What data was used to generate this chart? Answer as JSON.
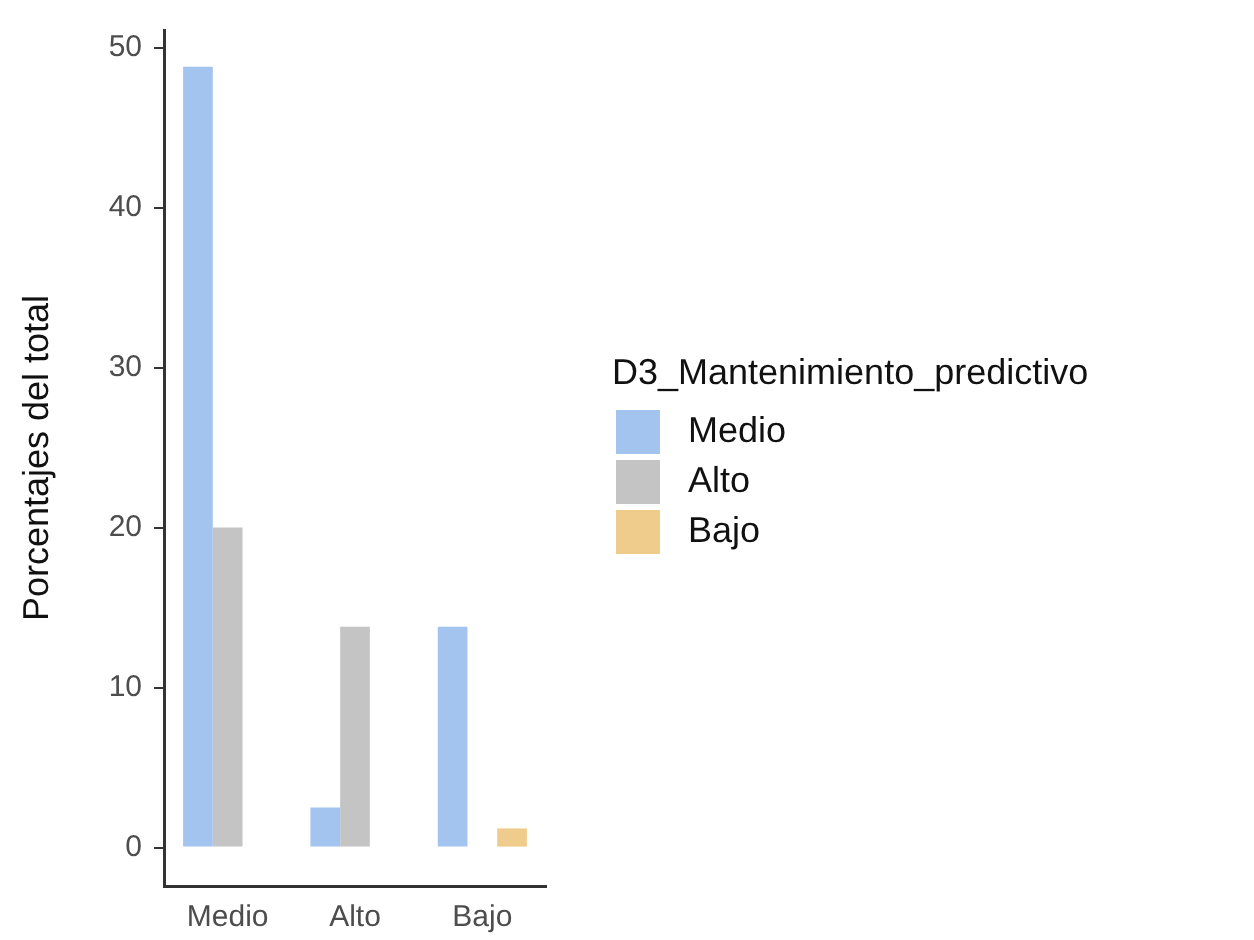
{
  "chart_data": {
    "type": "bar",
    "ylabel": "Porcentajes del total",
    "legend_title": "D3_Mantenimiento_predictivo",
    "categories": [
      "Medio",
      "Alto",
      "Bajo"
    ],
    "series": [
      {
        "name": "Medio",
        "color": "#a4c4f0",
        "values": [
          48.8,
          2.5,
          13.8
        ]
      },
      {
        "name": "Alto",
        "color": "#c4c4c4",
        "values": [
          20,
          13.8,
          null
        ]
      },
      {
        "name": "Bajo",
        "color": "#f0cc8c",
        "values": [
          null,
          null,
          1.2
        ]
      }
    ],
    "ylim": [
      -2.4,
      51.1
    ],
    "yticks": [
      0,
      10,
      20,
      30,
      40,
      50
    ],
    "grid": false,
    "legend": "right"
  }
}
